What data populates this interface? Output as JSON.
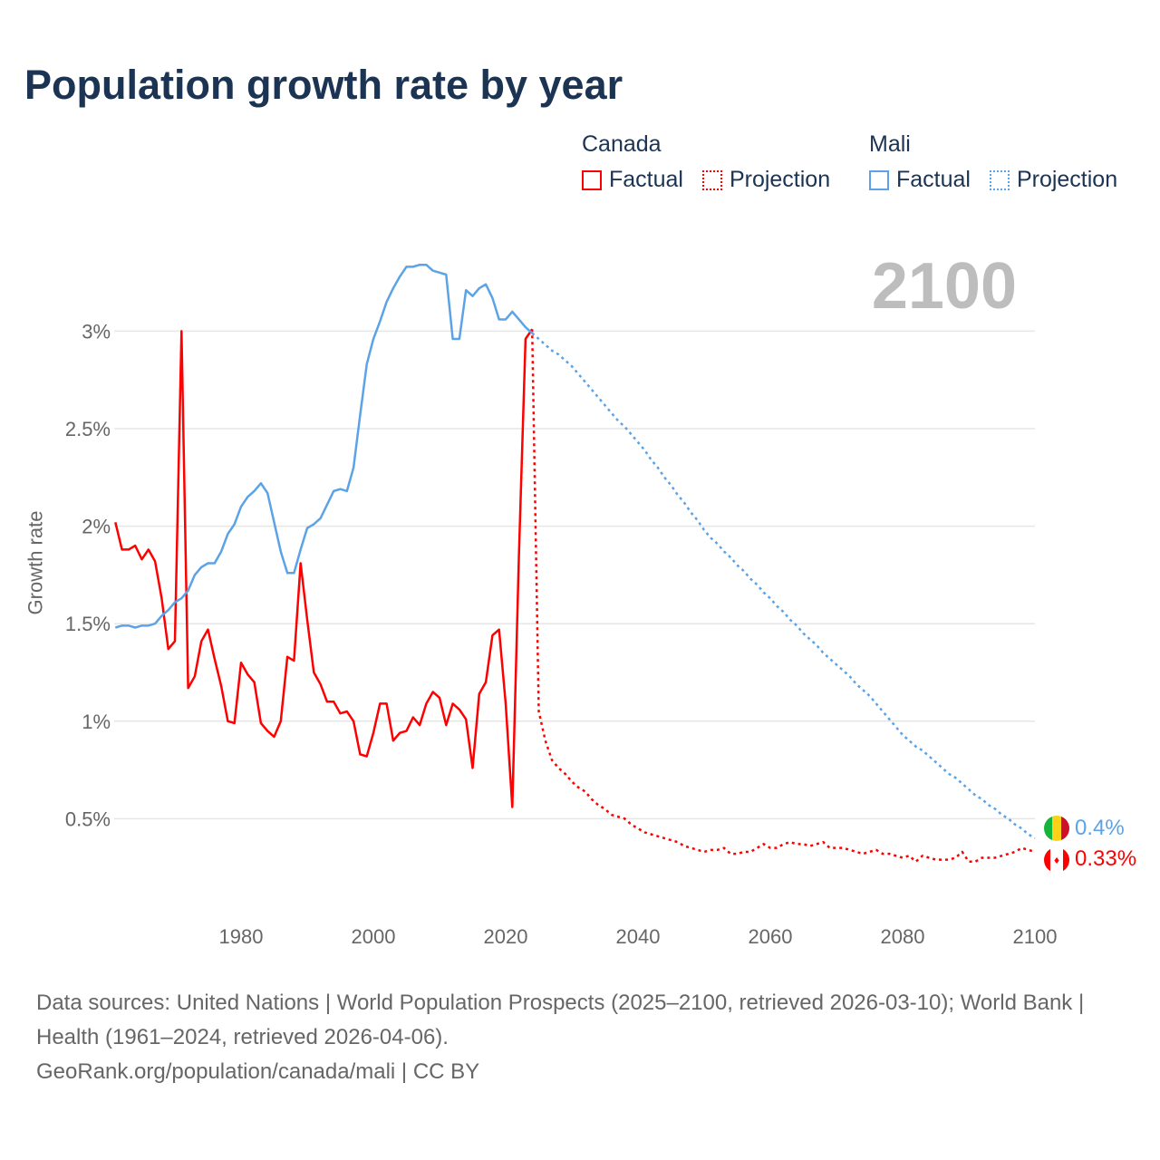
{
  "title": "Population growth rate by year",
  "legend": [
    {
      "group": "Canada",
      "color": "#ff0000",
      "factual": "Factual",
      "projection": "Projection"
    },
    {
      "group": "Mali",
      "color": "#5ba3e6",
      "factual": "Factual",
      "projection": "Projection"
    }
  ],
  "current_year": "2100",
  "end_labels": {
    "mali": "0.4%",
    "canada": "0.33%"
  },
  "footer": {
    "sources": "Data sources: United Nations | World Population Prospects (2025–2100, retrieved 2026-03-10); World Bank | Health (1961–2024, retrieved 2026-04-06).",
    "link": "GeoRank.org/population/canada/mali | CC BY"
  },
  "chart_data": {
    "type": "line",
    "title": "Population growth rate by year",
    "xlabel": "",
    "ylabel": "Growth rate",
    "xlim": [
      1961,
      2100
    ],
    "ylim": [
      0,
      3.4
    ],
    "grid": true,
    "legend_position": "top-right",
    "x_ticks": [
      1980,
      2000,
      2020,
      2040,
      2060,
      2080,
      2100
    ],
    "y_ticks": [
      0.5,
      1,
      1.5,
      2,
      2.5,
      3
    ],
    "y_tick_labels": [
      "0.5%",
      "1%",
      "1.5%",
      "2%",
      "2.5%",
      "3%"
    ],
    "series": [
      {
        "name": "Canada Factual",
        "color": "#ff0000",
        "dashed": false,
        "start": 1961,
        "values": [
          2.02,
          1.88,
          1.88,
          1.9,
          1.83,
          1.88,
          1.82,
          1.63,
          1.37,
          1.41,
          3.0,
          1.17,
          1.23,
          1.41,
          1.47,
          1.32,
          1.18,
          1.0,
          0.99,
          1.3,
          1.24,
          1.2,
          0.99,
          0.95,
          0.92,
          1.0,
          1.33,
          1.31,
          1.81,
          1.52,
          1.25,
          1.19,
          1.1,
          1.1,
          1.04,
          1.05,
          1.0,
          0.83,
          0.82,
          0.94,
          1.09,
          1.09,
          0.9,
          0.94,
          0.95,
          1.02,
          0.98,
          1.09,
          1.15,
          1.12,
          0.98,
          1.09,
          1.06,
          1.01,
          0.76,
          1.14,
          1.2,
          1.44,
          1.47,
          1.09,
          0.56,
          1.85,
          2.96,
          3.01
        ]
      },
      {
        "name": "Canada Projection",
        "color": "#ff0000",
        "dashed": true,
        "start": 2025,
        "values": [
          1.05,
          0.9,
          0.8,
          0.76,
          0.73,
          0.69,
          0.66,
          0.64,
          0.6,
          0.57,
          0.55,
          0.52,
          0.51,
          0.5,
          0.47,
          0.45,
          0.43,
          0.42,
          0.41,
          0.4,
          0.39,
          0.38,
          0.36,
          0.35,
          0.34,
          0.33,
          0.34,
          0.34,
          0.35,
          0.32,
          0.32,
          0.33,
          0.33,
          0.35,
          0.37,
          0.35,
          0.35,
          0.37,
          0.38,
          0.37,
          0.37,
          0.36,
          0.37,
          0.38,
          0.35,
          0.35,
          0.35,
          0.34,
          0.33,
          0.32,
          0.33,
          0.34,
          0.32,
          0.32,
          0.31,
          0.3,
          0.31,
          0.28,
          0.31,
          0.3,
          0.29,
          0.29,
          0.29,
          0.3,
          0.33,
          0.28,
          0.28,
          0.3,
          0.3,
          0.3,
          0.31,
          0.32,
          0.33,
          0.35,
          0.34,
          0.33
        ]
      },
      {
        "name": "Mali Factual",
        "color": "#5ba3e6",
        "dashed": false,
        "start": 1961,
        "values": [
          1.48,
          1.49,
          1.49,
          1.48,
          1.49,
          1.49,
          1.5,
          1.54,
          1.57,
          1.61,
          1.63,
          1.67,
          1.75,
          1.79,
          1.81,
          1.81,
          1.87,
          1.96,
          2.01,
          2.1,
          2.15,
          2.18,
          2.22,
          2.17,
          2.02,
          1.87,
          1.76,
          1.76,
          1.88,
          1.99,
          2.01,
          2.04,
          2.11,
          2.18,
          2.19,
          2.18,
          2.3,
          2.57,
          2.83,
          2.96,
          3.05,
          3.15,
          3.22,
          3.28,
          3.33,
          3.33,
          3.34,
          3.34,
          3.31,
          3.3,
          3.29,
          2.96,
          2.96,
          3.21,
          3.18,
          3.22,
          3.24,
          3.17,
          3.06,
          3.06,
          3.1,
          3.06,
          3.02,
          2.99
        ]
      },
      {
        "name": "Mali Projection",
        "color": "#5ba3e6",
        "dashed": true,
        "start": 2025,
        "values": [
          2.96,
          2.93,
          2.9,
          2.88,
          2.85,
          2.82,
          2.78,
          2.74,
          2.7,
          2.66,
          2.62,
          2.58,
          2.54,
          2.51,
          2.47,
          2.43,
          2.39,
          2.34,
          2.3,
          2.25,
          2.21,
          2.16,
          2.12,
          2.07,
          2.03,
          1.98,
          1.94,
          1.91,
          1.87,
          1.84,
          1.8,
          1.77,
          1.73,
          1.7,
          1.66,
          1.63,
          1.59,
          1.56,
          1.52,
          1.49,
          1.45,
          1.42,
          1.39,
          1.35,
          1.32,
          1.29,
          1.26,
          1.23,
          1.19,
          1.16,
          1.13,
          1.09,
          1.05,
          1.01,
          0.97,
          0.93,
          0.9,
          0.87,
          0.85,
          0.82,
          0.79,
          0.76,
          0.73,
          0.71,
          0.68,
          0.65,
          0.62,
          0.6,
          0.57,
          0.55,
          0.52,
          0.5,
          0.47,
          0.45,
          0.42,
          0.4
        ]
      }
    ]
  }
}
